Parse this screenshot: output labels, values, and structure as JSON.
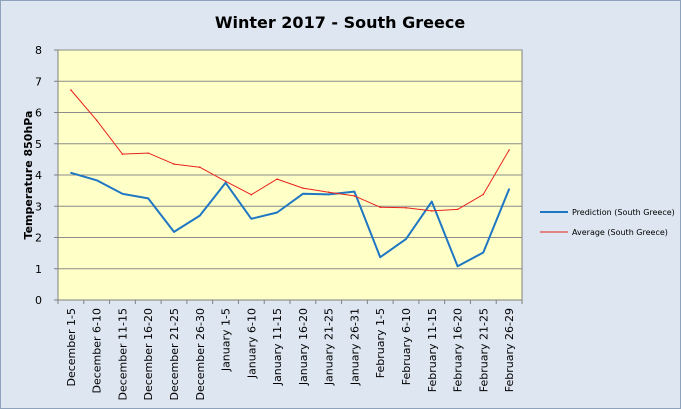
{
  "chart_data": {
    "type": "line",
    "title": "Winter 2017 - South Greece",
    "ylabel": "Temperature 850hPa",
    "xlabel": "",
    "ylim": [
      0,
      8
    ],
    "yticks": [
      0,
      1,
      2,
      3,
      4,
      5,
      6,
      7,
      8
    ],
    "grid": true,
    "legend_position": "right",
    "plot_background": "#ffffc8",
    "categories": [
      "December 1-5",
      "December 6-10",
      "December 11-15",
      "December 16-20",
      "December 21-25",
      "December 26-30",
      "January 1-5",
      "January 6-10",
      "January 11-15",
      "January 16-20",
      "January 21-25",
      "January 26-31",
      "February 1-5",
      "February 6-10",
      "February 11-15",
      "February 16-20",
      "February 21-25",
      "February 26-29"
    ],
    "series": [
      {
        "name": "Prediction (South Greece)",
        "color": "#1f77c4",
        "values": [
          4.07,
          3.83,
          3.4,
          3.25,
          2.18,
          2.7,
          3.75,
          2.6,
          2.8,
          3.4,
          3.38,
          3.47,
          1.37,
          1.95,
          3.15,
          1.08,
          1.52,
          3.55
        ]
      },
      {
        "name": "Average (South Greece)",
        "color": "#e8231c",
        "values": [
          6.72,
          5.75,
          4.67,
          4.7,
          4.35,
          4.25,
          3.8,
          3.37,
          3.87,
          3.58,
          3.45,
          3.33,
          2.97,
          2.95,
          2.85,
          2.9,
          3.38,
          4.8
        ]
      }
    ]
  }
}
